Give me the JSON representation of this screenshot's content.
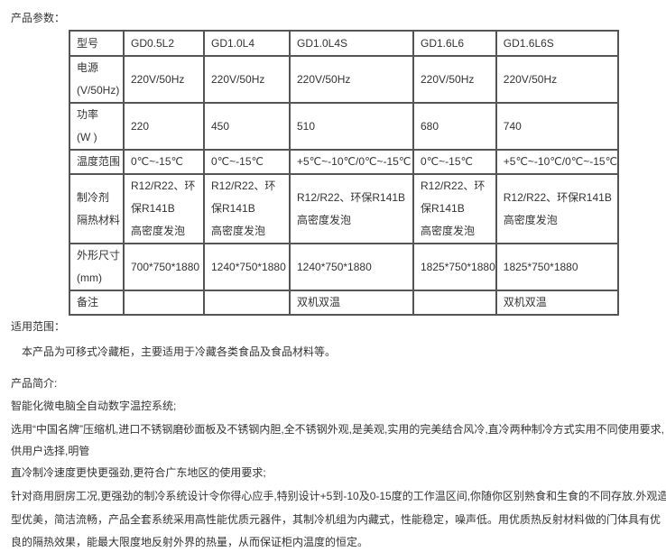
{
  "params_heading": "产品参数：",
  "table": {
    "rows": [
      {
        "label": [
          "型号"
        ],
        "cells": [
          [
            "GD0.5L2"
          ],
          [
            "GD1.0L4"
          ],
          [
            "GD1.0L4S"
          ],
          [
            "GD1.6L6"
          ],
          [
            "GD1.6L6S"
          ]
        ]
      },
      {
        "label": [
          "电源",
          "(V/50Hz)"
        ],
        "cells": [
          [
            "220V/50Hz"
          ],
          [
            "220V/50Hz"
          ],
          [
            "220V/50Hz"
          ],
          [
            "220V/50Hz"
          ],
          [
            "220V/50Hz"
          ]
        ]
      },
      {
        "label": [
          "功率",
          "(W )"
        ],
        "cells": [
          [
            "220"
          ],
          [
            "450"
          ],
          [
            "510"
          ],
          [
            "680"
          ],
          [
            "740"
          ]
        ]
      },
      {
        "label": [
          "温度范围"
        ],
        "cells": [
          [
            "0℃~-15℃"
          ],
          [
            "0℃~-15℃"
          ],
          [
            "+5℃~-10℃/0℃~-15℃"
          ],
          [
            "0℃~-15℃"
          ],
          [
            "+5℃~-10℃/0℃~-15℃"
          ]
        ]
      },
      {
        "label": [
          "制冷剂",
          "隔热材料"
        ],
        "cells": [
          [
            "R12/R22、环",
            "保R141B",
            "高密度发泡"
          ],
          [
            "R12/R22、环",
            "保R141B",
            "高密度发泡"
          ],
          [
            "R12/R22、环保R141B",
            "高密度发泡"
          ],
          [
            "R12/R22、环",
            "保R141B",
            "高密度发泡"
          ],
          [
            "R12/R22、环保R141B",
            "高密度发泡"
          ]
        ]
      },
      {
        "label": [
          "外形尺寸",
          "(mm)"
        ],
        "cells": [
          [
            "700*750*1880"
          ],
          [
            "1240*750*1880"
          ],
          [
            "1240*750*1880"
          ],
          [
            "1825*750*1880"
          ],
          [
            "1825*750*1880"
          ]
        ]
      },
      {
        "label": [
          "备注"
        ],
        "cells": [
          [
            ""
          ],
          [
            ""
          ],
          [
            "双机双温"
          ],
          [
            ""
          ],
          [
            "双机双温"
          ]
        ]
      }
    ]
  },
  "scope_heading": "适用范围：",
  "scope_text": "本产品为可移式冷藏柜，主要适用于冷藏各类食品及食品材料等。",
  "intro_heading": "产品简介:",
  "intro_lines": [
    "智能化微电脑全自动数字温控系统;",
    "选用“中国名牌”压缩机,进口不锈钢磨砂面板及不锈钢内胆,全不锈钢外观,是美观,实用的完美结合风冷,直冷两种制冷方式实用不同使用要求,",
    "供用户选择,明管",
    "直冷制冷速度更快更强劲,更符合广东地区的使用要求;",
    "针对商用厨房工况,更强劲的制冷系统设计令你得心应手,特别设计+5到-10及0-15度的工作温区间,你随你区别熟食和生食的不同存放.外观造",
    "型优美，简洁流畅，产品全套系统采用高性能优质元器件，其制冷机组为内藏式，性能稳定，噪声低。用优质热反射材料做的门体具有优",
    "良的隔热效果，能最大限度地反射外界的热量，从而保证柜内温度的恒定。"
  ]
}
